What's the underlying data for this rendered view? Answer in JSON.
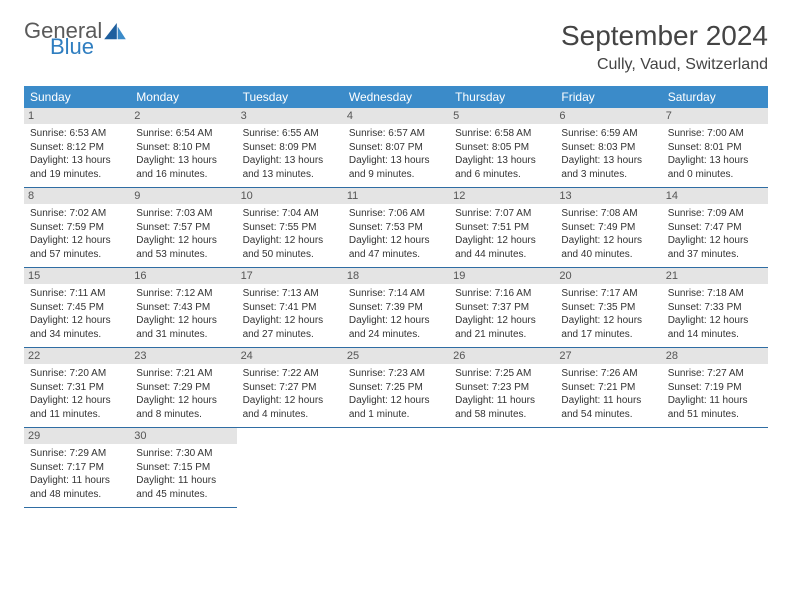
{
  "logo": {
    "textA": "General",
    "textB": "Blue"
  },
  "title": "September 2024",
  "location": "Cully, Vaud, Switzerland",
  "colors": {
    "headerBar": "#3b8bc9",
    "dateBar": "#e4e4e4",
    "ruleLine": "#2f6da3",
    "logoAccent": "#2f7ec0"
  },
  "dow": [
    "Sunday",
    "Monday",
    "Tuesday",
    "Wednesday",
    "Thursday",
    "Friday",
    "Saturday"
  ],
  "weeks": [
    [
      {
        "n": "1",
        "sr": "Sunrise: 6:53 AM",
        "ss": "Sunset: 8:12 PM",
        "d1": "Daylight: 13 hours",
        "d2": "and 19 minutes."
      },
      {
        "n": "2",
        "sr": "Sunrise: 6:54 AM",
        "ss": "Sunset: 8:10 PM",
        "d1": "Daylight: 13 hours",
        "d2": "and 16 minutes."
      },
      {
        "n": "3",
        "sr": "Sunrise: 6:55 AM",
        "ss": "Sunset: 8:09 PM",
        "d1": "Daylight: 13 hours",
        "d2": "and 13 minutes."
      },
      {
        "n": "4",
        "sr": "Sunrise: 6:57 AM",
        "ss": "Sunset: 8:07 PM",
        "d1": "Daylight: 13 hours",
        "d2": "and 9 minutes."
      },
      {
        "n": "5",
        "sr": "Sunrise: 6:58 AM",
        "ss": "Sunset: 8:05 PM",
        "d1": "Daylight: 13 hours",
        "d2": "and 6 minutes."
      },
      {
        "n": "6",
        "sr": "Sunrise: 6:59 AM",
        "ss": "Sunset: 8:03 PM",
        "d1": "Daylight: 13 hours",
        "d2": "and 3 minutes."
      },
      {
        "n": "7",
        "sr": "Sunrise: 7:00 AM",
        "ss": "Sunset: 8:01 PM",
        "d1": "Daylight: 13 hours",
        "d2": "and 0 minutes."
      }
    ],
    [
      {
        "n": "8",
        "sr": "Sunrise: 7:02 AM",
        "ss": "Sunset: 7:59 PM",
        "d1": "Daylight: 12 hours",
        "d2": "and 57 minutes."
      },
      {
        "n": "9",
        "sr": "Sunrise: 7:03 AM",
        "ss": "Sunset: 7:57 PM",
        "d1": "Daylight: 12 hours",
        "d2": "and 53 minutes."
      },
      {
        "n": "10",
        "sr": "Sunrise: 7:04 AM",
        "ss": "Sunset: 7:55 PM",
        "d1": "Daylight: 12 hours",
        "d2": "and 50 minutes."
      },
      {
        "n": "11",
        "sr": "Sunrise: 7:06 AM",
        "ss": "Sunset: 7:53 PM",
        "d1": "Daylight: 12 hours",
        "d2": "and 47 minutes."
      },
      {
        "n": "12",
        "sr": "Sunrise: 7:07 AM",
        "ss": "Sunset: 7:51 PM",
        "d1": "Daylight: 12 hours",
        "d2": "and 44 minutes."
      },
      {
        "n": "13",
        "sr": "Sunrise: 7:08 AM",
        "ss": "Sunset: 7:49 PM",
        "d1": "Daylight: 12 hours",
        "d2": "and 40 minutes."
      },
      {
        "n": "14",
        "sr": "Sunrise: 7:09 AM",
        "ss": "Sunset: 7:47 PM",
        "d1": "Daylight: 12 hours",
        "d2": "and 37 minutes."
      }
    ],
    [
      {
        "n": "15",
        "sr": "Sunrise: 7:11 AM",
        "ss": "Sunset: 7:45 PM",
        "d1": "Daylight: 12 hours",
        "d2": "and 34 minutes."
      },
      {
        "n": "16",
        "sr": "Sunrise: 7:12 AM",
        "ss": "Sunset: 7:43 PM",
        "d1": "Daylight: 12 hours",
        "d2": "and 31 minutes."
      },
      {
        "n": "17",
        "sr": "Sunrise: 7:13 AM",
        "ss": "Sunset: 7:41 PM",
        "d1": "Daylight: 12 hours",
        "d2": "and 27 minutes."
      },
      {
        "n": "18",
        "sr": "Sunrise: 7:14 AM",
        "ss": "Sunset: 7:39 PM",
        "d1": "Daylight: 12 hours",
        "d2": "and 24 minutes."
      },
      {
        "n": "19",
        "sr": "Sunrise: 7:16 AM",
        "ss": "Sunset: 7:37 PM",
        "d1": "Daylight: 12 hours",
        "d2": "and 21 minutes."
      },
      {
        "n": "20",
        "sr": "Sunrise: 7:17 AM",
        "ss": "Sunset: 7:35 PM",
        "d1": "Daylight: 12 hours",
        "d2": "and 17 minutes."
      },
      {
        "n": "21",
        "sr": "Sunrise: 7:18 AM",
        "ss": "Sunset: 7:33 PM",
        "d1": "Daylight: 12 hours",
        "d2": "and 14 minutes."
      }
    ],
    [
      {
        "n": "22",
        "sr": "Sunrise: 7:20 AM",
        "ss": "Sunset: 7:31 PM",
        "d1": "Daylight: 12 hours",
        "d2": "and 11 minutes."
      },
      {
        "n": "23",
        "sr": "Sunrise: 7:21 AM",
        "ss": "Sunset: 7:29 PM",
        "d1": "Daylight: 12 hours",
        "d2": "and 8 minutes."
      },
      {
        "n": "24",
        "sr": "Sunrise: 7:22 AM",
        "ss": "Sunset: 7:27 PM",
        "d1": "Daylight: 12 hours",
        "d2": "and 4 minutes."
      },
      {
        "n": "25",
        "sr": "Sunrise: 7:23 AM",
        "ss": "Sunset: 7:25 PM",
        "d1": "Daylight: 12 hours",
        "d2": "and 1 minute."
      },
      {
        "n": "26",
        "sr": "Sunrise: 7:25 AM",
        "ss": "Sunset: 7:23 PM",
        "d1": "Daylight: 11 hours",
        "d2": "and 58 minutes."
      },
      {
        "n": "27",
        "sr": "Sunrise: 7:26 AM",
        "ss": "Sunset: 7:21 PM",
        "d1": "Daylight: 11 hours",
        "d2": "and 54 minutes."
      },
      {
        "n": "28",
        "sr": "Sunrise: 7:27 AM",
        "ss": "Sunset: 7:19 PM",
        "d1": "Daylight: 11 hours",
        "d2": "and 51 minutes."
      }
    ],
    [
      {
        "n": "29",
        "sr": "Sunrise: 7:29 AM",
        "ss": "Sunset: 7:17 PM",
        "d1": "Daylight: 11 hours",
        "d2": "and 48 minutes."
      },
      {
        "n": "30",
        "sr": "Sunrise: 7:30 AM",
        "ss": "Sunset: 7:15 PM",
        "d1": "Daylight: 11 hours",
        "d2": "and 45 minutes."
      },
      null,
      null,
      null,
      null,
      null
    ]
  ]
}
